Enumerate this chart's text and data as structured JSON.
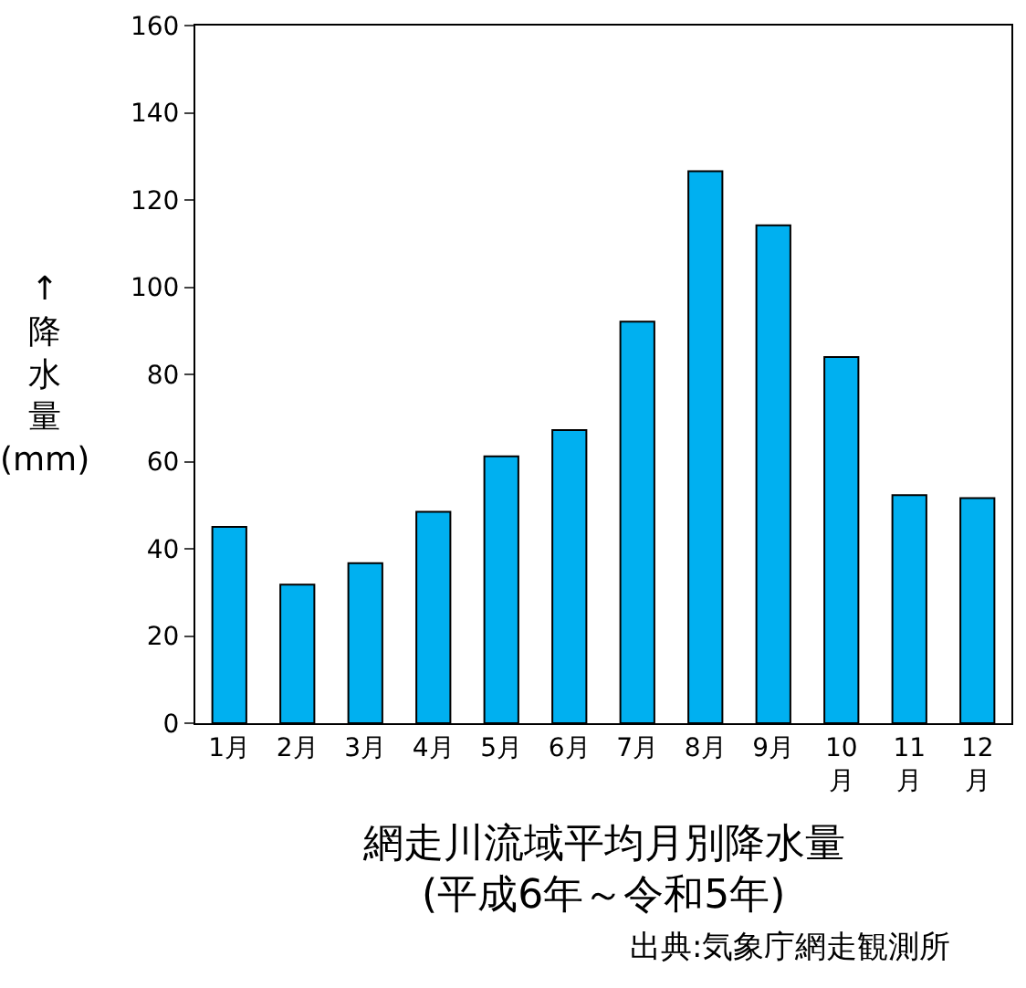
{
  "chart_data": {
    "type": "bar",
    "title": "網走川流域平均月別降水量",
    "subtitle": "(平成6年～令和5年)",
    "ylabel": "↑降水量(mm)",
    "annotations": [
      "出典:気象庁網走観測所"
    ],
    "categories": [
      "1月",
      "2月",
      "3月",
      "4月",
      "5月",
      "6月",
      "7月",
      "8月",
      "9月",
      "10\n月",
      "11\n月",
      "12\n月"
    ],
    "values": [
      45,
      31.8,
      36.7,
      48.5,
      61.2,
      67.2,
      92.1,
      126.6,
      114.2,
      84,
      52.3,
      51.6
    ],
    "color": "#00b0f0",
    "ylim": [
      0,
      160
    ],
    "yticks": [
      0,
      20,
      40,
      60,
      80,
      100,
      120,
      140,
      160
    ]
  }
}
